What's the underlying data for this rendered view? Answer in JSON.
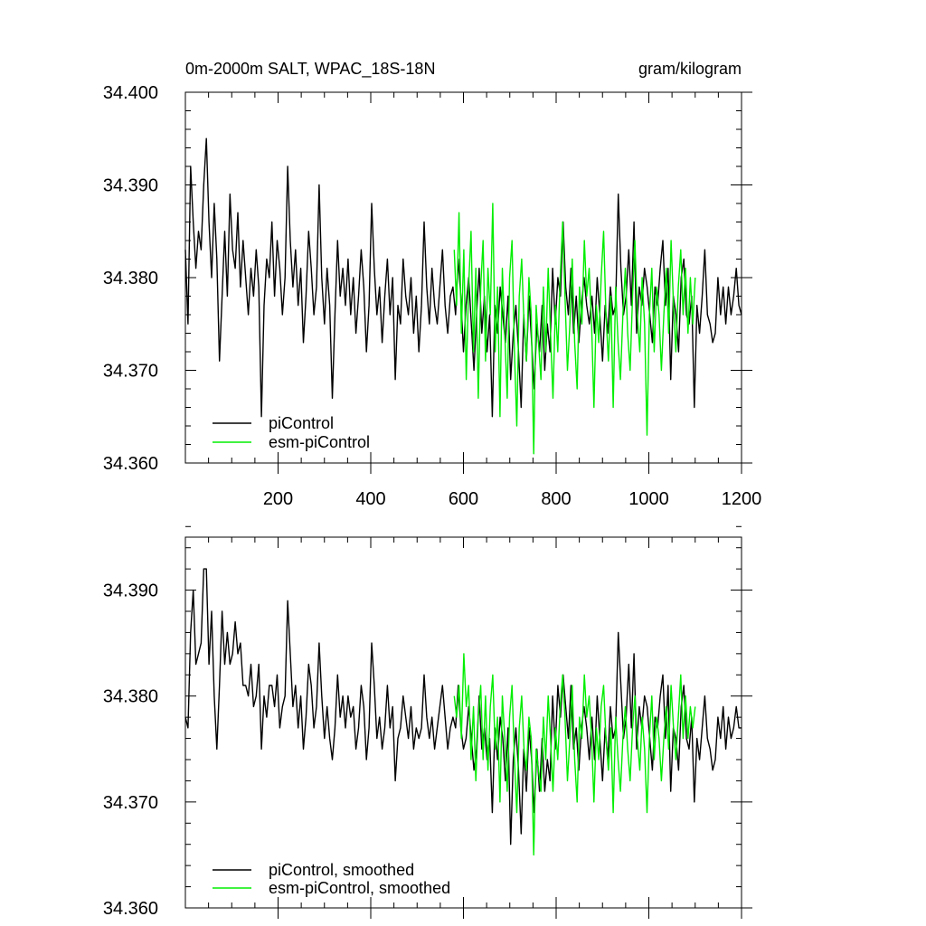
{
  "chart_data": [
    {
      "type": "line",
      "title_left": "0m-2000m SALT, WPAC_18S-18N",
      "title_right": "gram/kilogram",
      "xlabel": "",
      "ylabel": "",
      "xlim": [
        0,
        1200
      ],
      "ylim": [
        34.36,
        34.4
      ],
      "x_major_ticks": [
        200,
        400,
        600,
        800,
        1000,
        1200
      ],
      "x_tick_labels": [
        "200",
        "400",
        "600",
        "800",
        "1000",
        "1200"
      ],
      "y_major_ticks": [
        34.36,
        34.37,
        34.38,
        34.39,
        34.4
      ],
      "y_tick_labels": [
        "34.360",
        "34.370",
        "34.380",
        "34.390",
        "34.400"
      ],
      "legend_position": "bottom-left",
      "series": [
        {
          "name": "piControl",
          "color": "#000000",
          "x_start": 0,
          "x_end": 1200,
          "values": [
            34.383,
            34.375,
            34.392,
            34.386,
            34.381,
            34.385,
            34.383,
            34.39,
            34.395,
            34.386,
            34.38,
            34.388,
            34.382,
            34.371,
            34.378,
            34.385,
            34.378,
            34.389,
            34.383,
            34.381,
            34.387,
            34.379,
            34.384,
            34.38,
            34.376,
            34.381,
            34.378,
            34.383,
            34.379,
            34.365,
            34.377,
            34.382,
            34.38,
            34.386,
            34.378,
            34.384,
            34.381,
            34.376,
            34.38,
            34.392,
            34.384,
            34.379,
            34.383,
            34.377,
            34.381,
            34.373,
            34.378,
            34.385,
            34.381,
            34.376,
            34.379,
            34.39,
            34.38,
            34.375,
            34.381,
            34.377,
            34.367,
            34.376,
            34.384,
            34.378,
            34.381,
            34.377,
            34.382,
            34.376,
            34.38,
            34.374,
            34.378,
            34.383,
            34.379,
            34.372,
            34.377,
            34.388,
            34.381,
            34.376,
            34.379,
            34.373,
            34.378,
            34.382,
            34.376,
            34.38,
            34.369,
            34.377,
            34.375,
            34.382,
            34.378,
            34.376,
            34.38,
            34.374,
            34.378,
            34.372,
            34.377,
            34.386,
            34.379,
            34.375,
            34.381,
            34.377,
            34.375,
            34.379,
            34.383,
            34.377,
            34.374,
            34.378,
            34.379,
            34.376,
            34.382,
            34.378,
            34.372,
            34.377,
            34.38,
            34.375,
            34.37,
            34.376,
            34.381,
            34.374,
            34.378,
            34.372,
            34.376,
            34.365,
            34.377,
            34.374,
            34.379,
            34.376,
            34.373,
            34.378,
            34.369,
            34.374,
            34.377,
            34.372,
            34.366,
            34.376,
            34.371,
            34.378,
            34.373,
            34.368,
            34.375,
            34.372,
            34.377,
            34.37,
            34.375,
            34.372,
            34.381,
            34.375,
            34.38,
            34.378,
            34.386,
            34.379,
            34.376,
            34.381,
            34.374,
            34.378,
            34.373,
            34.377,
            34.38,
            34.377,
            34.375,
            34.378,
            34.374,
            34.38,
            34.376,
            34.371,
            34.377,
            34.374,
            34.379,
            34.376,
            34.377,
            34.389,
            34.381,
            34.376,
            34.378,
            34.383,
            34.377,
            34.386,
            34.374,
            34.379,
            34.377,
            34.381,
            34.379,
            34.376,
            34.373,
            34.379,
            34.377,
            34.381,
            34.384,
            34.377,
            34.381,
            34.369,
            34.378,
            34.376,
            34.372,
            34.38,
            34.382,
            34.376,
            34.375,
            34.378,
            34.366,
            34.377,
            34.374,
            34.378,
            34.383,
            34.376,
            34.375,
            34.373,
            34.374,
            34.38,
            34.376,
            34.379,
            34.375,
            34.379,
            34.376,
            34.378,
            34.381,
            34.377,
            34.376
          ]
        },
        {
          "name": "esm-piControl",
          "color": "#00ee00",
          "x_start": 580,
          "x_end": 1100,
          "values": [
            34.383,
            34.377,
            34.387,
            34.374,
            34.383,
            34.369,
            34.379,
            34.385,
            34.372,
            34.381,
            34.367,
            34.379,
            34.384,
            34.371,
            34.381,
            34.376,
            34.388,
            34.372,
            34.379,
            34.365,
            34.381,
            34.374,
            34.367,
            34.38,
            34.384,
            34.372,
            34.364,
            34.378,
            34.382,
            34.375,
            34.371,
            34.38,
            34.376,
            34.361,
            34.377,
            34.373,
            34.369,
            34.379,
            34.372,
            34.381,
            34.374,
            34.367,
            34.377,
            34.372,
            34.38,
            34.386,
            34.378,
            34.37,
            34.375,
            34.382,
            34.373,
            34.368,
            34.379,
            34.375,
            34.384,
            34.378,
            34.381,
            34.375,
            34.366,
            34.377,
            34.373,
            34.38,
            34.385,
            34.376,
            34.371,
            34.378,
            34.366,
            34.379,
            34.373,
            34.369,
            34.376,
            34.381,
            34.374,
            34.37,
            34.378,
            34.384,
            34.376,
            34.372,
            34.38,
            34.375,
            34.363,
            34.376,
            34.381,
            34.372,
            34.379,
            34.376,
            34.37,
            34.376,
            34.381,
            34.374,
            34.384,
            34.377,
            34.372,
            34.379,
            34.383,
            34.376,
            34.381,
            34.374,
            34.38,
            34.375,
            34.38
          ]
        }
      ]
    },
    {
      "type": "line",
      "xlabel": "",
      "ylabel": "",
      "xlim": [
        0,
        1200
      ],
      "ylim": [
        34.36,
        34.395
      ],
      "x_major_ticks": [
        200,
        400,
        600,
        800,
        1000,
        1200
      ],
      "y_major_ticks": [
        34.36,
        34.37,
        34.38,
        34.39
      ],
      "y_tick_labels": [
        "34.360",
        "34.370",
        "34.380",
        "34.390"
      ],
      "legend_position": "bottom-left",
      "series": [
        {
          "name": "piControl, smoothed",
          "color": "#000000",
          "x_start": 0,
          "x_end": 1200,
          "values": [
            34.378,
            34.377,
            34.386,
            34.39,
            34.383,
            34.384,
            34.385,
            34.392,
            34.392,
            34.383,
            34.388,
            34.38,
            34.375,
            34.381,
            34.388,
            34.383,
            34.386,
            34.383,
            34.384,
            34.387,
            34.384,
            34.385,
            34.381,
            34.381,
            34.38,
            34.383,
            34.379,
            34.38,
            34.383,
            34.375,
            34.38,
            34.378,
            34.381,
            34.381,
            34.379,
            34.382,
            34.377,
            34.379,
            34.38,
            34.389,
            34.384,
            34.379,
            34.381,
            34.377,
            34.38,
            34.375,
            34.378,
            34.383,
            34.381,
            34.377,
            34.379,
            34.385,
            34.38,
            34.376,
            34.379,
            34.376,
            34.374,
            34.377,
            34.382,
            34.378,
            34.38,
            34.377,
            34.38,
            34.378,
            34.379,
            34.375,
            34.377,
            34.381,
            34.379,
            34.374,
            34.377,
            34.385,
            34.381,
            34.376,
            34.378,
            34.375,
            34.377,
            34.381,
            34.377,
            34.379,
            34.372,
            34.376,
            34.377,
            34.38,
            34.378,
            34.376,
            34.379,
            34.375,
            34.377,
            34.376,
            34.377,
            34.382,
            34.378,
            34.376,
            34.378,
            34.375,
            34.377,
            34.379,
            34.381,
            34.378,
            34.375,
            34.377,
            34.378,
            34.377,
            34.381,
            34.377,
            34.375,
            34.376,
            34.379,
            34.376,
            34.373,
            34.375,
            34.38,
            34.375,
            34.377,
            34.374,
            34.376,
            34.369,
            34.377,
            34.374,
            34.378,
            34.376,
            34.372,
            34.377,
            34.366,
            34.374,
            34.377,
            34.373,
            34.367,
            34.375,
            34.371,
            34.377,
            34.374,
            34.369,
            34.375,
            34.371,
            34.376,
            34.371,
            34.374,
            34.372,
            34.38,
            34.375,
            34.381,
            34.378,
            34.382,
            34.379,
            34.376,
            34.381,
            34.375,
            34.377,
            34.373,
            34.377,
            34.379,
            34.377,
            34.374,
            34.378,
            34.374,
            34.38,
            34.376,
            34.372,
            34.377,
            34.374,
            34.379,
            34.376,
            34.377,
            34.386,
            34.381,
            34.376,
            34.378,
            34.383,
            34.377,
            34.384,
            34.375,
            34.379,
            34.377,
            34.38,
            34.379,
            34.376,
            34.373,
            34.378,
            34.377,
            34.38,
            34.382,
            34.376,
            34.381,
            34.371,
            34.377,
            34.376,
            34.373,
            34.379,
            34.381,
            34.376,
            34.375,
            34.378,
            34.37,
            34.376,
            34.374,
            34.377,
            34.38,
            34.376,
            34.375,
            34.373,
            34.374,
            34.378,
            34.376,
            34.379,
            34.375,
            34.378,
            34.376,
            34.377,
            34.379,
            34.377,
            34.377
          ]
        },
        {
          "name": "esm-piControl, smoothed",
          "color": "#00ee00",
          "x_start": 580,
          "x_end": 1100,
          "values": [
            34.38,
            34.378,
            34.381,
            34.376,
            34.384,
            34.379,
            34.381,
            34.374,
            34.379,
            34.372,
            34.378,
            34.381,
            34.374,
            34.38,
            34.373,
            34.379,
            34.382,
            34.375,
            34.378,
            34.37,
            34.38,
            34.376,
            34.371,
            34.378,
            34.381,
            34.374,
            34.369,
            34.377,
            34.38,
            34.375,
            34.373,
            34.378,
            34.376,
            34.365,
            34.375,
            34.373,
            34.371,
            34.378,
            34.374,
            34.38,
            34.376,
            34.371,
            34.377,
            34.374,
            34.379,
            34.382,
            34.378,
            34.372,
            34.376,
            34.381,
            34.374,
            34.37,
            34.378,
            34.376,
            34.382,
            34.378,
            34.38,
            34.376,
            34.37,
            34.377,
            34.374,
            34.379,
            34.381,
            34.376,
            34.373,
            34.377,
            34.369,
            34.378,
            34.374,
            34.371,
            34.376,
            34.379,
            34.375,
            34.372,
            34.377,
            34.38,
            34.376,
            34.373,
            34.378,
            34.375,
            34.369,
            34.376,
            34.38,
            34.374,
            34.378,
            34.376,
            34.372,
            34.376,
            34.379,
            34.375,
            34.381,
            34.377,
            34.374,
            34.378,
            34.382,
            34.376,
            34.38,
            34.376,
            34.379,
            34.377,
            34.379
          ]
        }
      ]
    }
  ]
}
